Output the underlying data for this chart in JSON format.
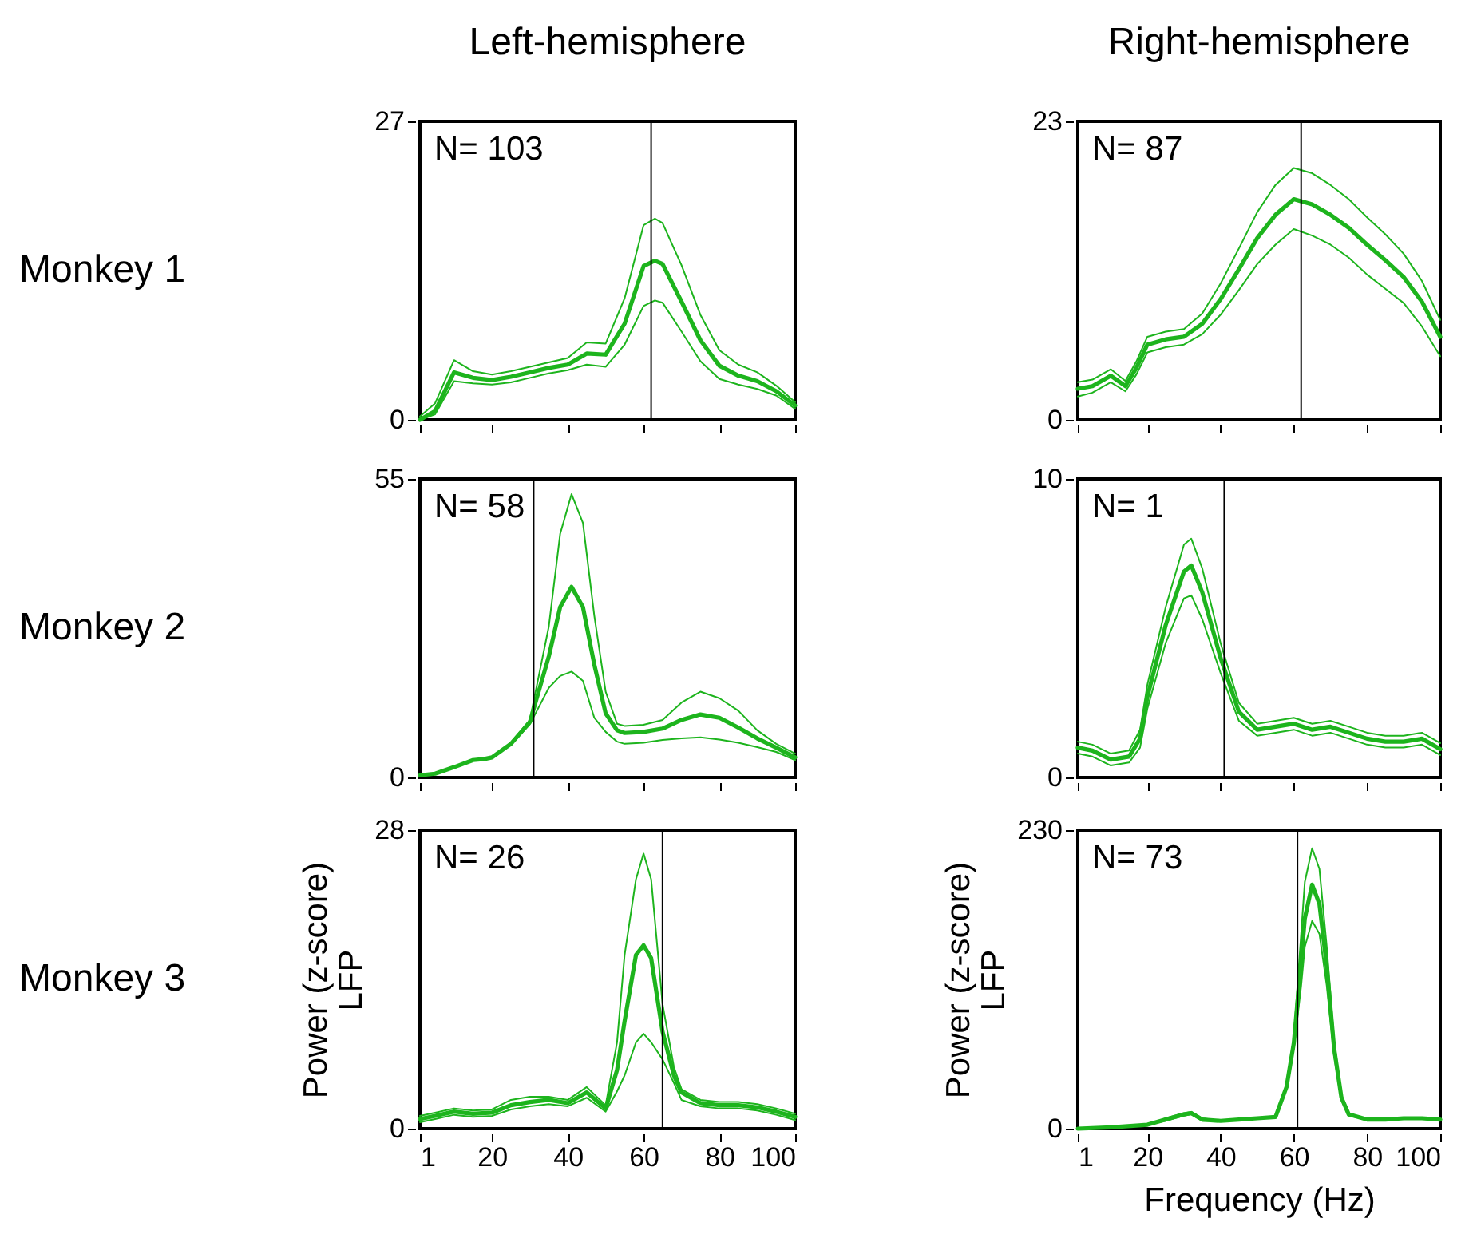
{
  "chart_data": [
    {
      "type": "line",
      "title": "Left-hemisphere",
      "annotations": [
        "Monkey 1",
        "N= 103"
      ],
      "x": [
        1,
        5,
        10,
        15,
        20,
        25,
        30,
        35,
        40,
        45,
        50,
        55,
        60,
        63,
        65,
        70,
        75,
        80,
        85,
        90,
        95,
        100
      ],
      "series": [
        {
          "color": "#1db41d",
          "values": [
            0,
            0.8,
            4.3,
            3.8,
            3.6,
            3.9,
            4.3,
            4.7,
            5.0,
            6.0,
            5.9,
            8.7,
            13.9,
            14.4,
            14.1,
            10.7,
            7.2,
            4.9,
            4.0,
            3.5,
            2.6,
            1.3
          ]
        },
        {
          "color": "#1db41d",
          "values": [
            0.3,
            1.5,
            5.4,
            4.4,
            4.1,
            4.4,
            4.8,
            5.2,
            5.6,
            7.0,
            6.9,
            11.0,
            17.6,
            18.2,
            17.8,
            14.0,
            9.5,
            6.3,
            5.0,
            4.3,
            3.1,
            1.6
          ]
        },
        {
          "color": "#1db41d",
          "values": [
            0,
            0.5,
            3.5,
            3.3,
            3.2,
            3.4,
            3.8,
            4.2,
            4.5,
            5.0,
            4.8,
            6.8,
            10.3,
            10.8,
            10.6,
            8.0,
            5.3,
            3.7,
            3.2,
            2.8,
            2.2,
            1.0
          ]
        }
      ],
      "xlim": [
        1,
        100
      ],
      "xticks": [
        1,
        20,
        40,
        60,
        80,
        100
      ],
      "ylim": [
        0,
        27
      ],
      "yticks": [
        0,
        27
      ],
      "ref_lines": [
        {
          "axis": "x",
          "value": 62,
          "color": "#000000"
        }
      ],
      "tick_labels": "y"
    },
    {
      "type": "line",
      "title": "Right-hemisphere",
      "annotations": [
        "N= 87"
      ],
      "x": [
        1,
        5,
        10,
        14,
        17,
        20,
        25,
        30,
        35,
        40,
        45,
        50,
        55,
        60,
        65,
        70,
        75,
        80,
        85,
        90,
        95,
        100
      ],
      "series": [
        {
          "color": "#1db41d",
          "values": [
            2.4,
            2.6,
            3.4,
            2.6,
            4.0,
            5.8,
            6.2,
            6.4,
            7.4,
            9.3,
            11.6,
            14.0,
            15.8,
            17.0,
            16.6,
            15.8,
            14.8,
            13.5,
            12.3,
            11.0,
            9.1,
            6.4
          ]
        },
        {
          "color": "#1db41d",
          "values": [
            2.9,
            3.1,
            3.9,
            3.0,
            4.5,
            6.4,
            6.8,
            7.0,
            8.2,
            10.5,
            13.2,
            16.0,
            18.1,
            19.4,
            19.0,
            18.1,
            17.0,
            15.6,
            14.3,
            12.8,
            10.7,
            7.7
          ]
        },
        {
          "color": "#1db41d",
          "values": [
            1.8,
            2.1,
            2.9,
            2.2,
            3.5,
            5.2,
            5.6,
            5.8,
            6.6,
            8.1,
            10.0,
            12.0,
            13.5,
            14.7,
            14.2,
            13.5,
            12.5,
            11.2,
            10.1,
            9.0,
            7.2,
            4.9
          ]
        }
      ],
      "xlim": [
        1,
        100
      ],
      "xticks": [
        1,
        20,
        40,
        60,
        80,
        100
      ],
      "ylim": [
        0,
        23
      ],
      "yticks": [
        0,
        23
      ],
      "ref_lines": [
        {
          "axis": "x",
          "value": 62,
          "color": "#000000"
        }
      ],
      "tick_labels": "y"
    },
    {
      "type": "line",
      "annotations": [
        "Monkey 2",
        "N= 58"
      ],
      "x": [
        1,
        5,
        10,
        15,
        18,
        20,
        25,
        30,
        35,
        38,
        41,
        44,
        47,
        50,
        53,
        55,
        60,
        65,
        70,
        75,
        80,
        85,
        90,
        95,
        100
      ],
      "series": [
        {
          "color": "#1db41d",
          "values": [
            0.4,
            0.7,
            1.9,
            3.2,
            3.4,
            3.7,
            6.2,
            10.2,
            22.3,
            31.4,
            35.1,
            31.4,
            20.8,
            11.8,
            8.7,
            8.2,
            8.4,
            9.0,
            10.6,
            11.6,
            11.0,
            9.2,
            7.2,
            5.5,
            3.7
          ]
        },
        {
          "color": "#1db41d",
          "values": [
            0.4,
            0.7,
            1.9,
            3.2,
            3.4,
            3.8,
            6.4,
            10.6,
            27.8,
            44.9,
            52.2,
            46.9,
            29.8,
            15.8,
            9.9,
            9.5,
            9.7,
            10.6,
            13.8,
            15.8,
            14.6,
            12.3,
            8.7,
            6.2,
            4.4
          ]
        },
        {
          "color": "#1db41d",
          "values": [
            0.4,
            0.7,
            1.9,
            3.2,
            3.4,
            3.7,
            6.0,
            9.8,
            16.5,
            18.7,
            19.5,
            17.8,
            11.0,
            8.4,
            6.6,
            6.2,
            6.4,
            6.9,
            7.2,
            7.4,
            7.0,
            6.4,
            5.6,
            4.7,
            3.2
          ]
        }
      ],
      "xlim": [
        1,
        100
      ],
      "xticks": [
        1,
        20,
        40,
        60,
        80,
        100
      ],
      "ylim": [
        0,
        55
      ],
      "yticks": [
        0,
        55
      ],
      "ref_lines": [
        {
          "axis": "x",
          "value": 31,
          "color": "#000000"
        }
      ],
      "tick_labels": "y"
    },
    {
      "type": "line",
      "annotations": [
        "N= 1"
      ],
      "x": [
        1,
        5,
        10,
        15,
        18,
        20,
        25,
        30,
        32,
        35,
        40,
        45,
        50,
        55,
        60,
        65,
        70,
        75,
        80,
        85,
        90,
        95,
        100
      ],
      "series": [
        {
          "color": "#1db41d",
          "values": [
            1.0,
            0.9,
            0.6,
            0.7,
            1.3,
            2.7,
            5.1,
            6.9,
            7.1,
            6.2,
            4.0,
            2.2,
            1.6,
            1.7,
            1.8,
            1.6,
            1.7,
            1.5,
            1.3,
            1.2,
            1.2,
            1.3,
            0.95
          ]
        },
        {
          "color": "#1db41d",
          "values": [
            1.2,
            1.1,
            0.8,
            0.9,
            1.6,
            3.1,
            5.7,
            7.8,
            8.0,
            7.0,
            4.5,
            2.5,
            1.8,
            1.9,
            2.0,
            1.8,
            1.9,
            1.7,
            1.5,
            1.4,
            1.4,
            1.5,
            1.15
          ]
        },
        {
          "color": "#1db41d",
          "values": [
            0.8,
            0.7,
            0.4,
            0.5,
            1.0,
            2.3,
            4.5,
            6.0,
            6.1,
            5.3,
            3.5,
            1.9,
            1.4,
            1.5,
            1.6,
            1.4,
            1.5,
            1.3,
            1.1,
            1.0,
            1.0,
            1.1,
            0.75
          ]
        }
      ],
      "xlim": [
        1,
        100
      ],
      "xticks": [
        1,
        20,
        40,
        60,
        80,
        100
      ],
      "ylim": [
        0,
        10
      ],
      "yticks": [
        0,
        10
      ],
      "ref_lines": [
        {
          "axis": "x",
          "value": 41,
          "color": "#000000"
        }
      ],
      "tick_labels": "y"
    },
    {
      "type": "line",
      "annotations": [
        "Monkey 3",
        "N= 26"
      ],
      "ylabel": "Power (z-score)\nLFP",
      "x": [
        1,
        5,
        10,
        15,
        20,
        25,
        30,
        35,
        40,
        45,
        50,
        53,
        55,
        58,
        60,
        62,
        65,
        68,
        70,
        75,
        80,
        85,
        90,
        95,
        100
      ],
      "series": [
        {
          "color": "#1db41d",
          "values": [
            0.9,
            1.2,
            1.6,
            1.4,
            1.5,
            2.2,
            2.5,
            2.7,
            2.4,
            3.4,
            1.9,
            5.5,
            10.1,
            16.3,
            17.2,
            16.0,
            9.1,
            5.0,
            3.4,
            2.4,
            2.2,
            2.2,
            2.0,
            1.6,
            1.1
          ]
        },
        {
          "color": "#1db41d",
          "values": [
            1.2,
            1.5,
            1.9,
            1.7,
            1.8,
            2.7,
            3.0,
            3.0,
            2.7,
            3.9,
            2.2,
            8.1,
            16.3,
            23.4,
            25.8,
            23.4,
            11.7,
            5.8,
            3.7,
            2.7,
            2.5,
            2.5,
            2.3,
            1.9,
            1.4
          ]
        },
        {
          "color": "#1db41d",
          "values": [
            0.6,
            0.9,
            1.3,
            1.1,
            1.2,
            1.8,
            2.1,
            2.3,
            2.1,
            2.9,
            1.6,
            3.5,
            5.0,
            8.1,
            8.9,
            8.1,
            6.5,
            4.3,
            2.7,
            2.1,
            1.9,
            1.9,
            1.7,
            1.3,
            0.8
          ]
        }
      ],
      "xlim": [
        1,
        100
      ],
      "xticks": [
        1,
        20,
        40,
        60,
        80,
        100
      ],
      "ylim": [
        0,
        28
      ],
      "yticks": [
        0,
        28
      ],
      "ref_lines": [
        {
          "axis": "x",
          "value": 65,
          "color": "#000000"
        }
      ]
    },
    {
      "type": "line",
      "annotations": [
        "N= 73"
      ],
      "ylabel": "Power (z-score)\nLFP",
      "xlabel": "Frequency (Hz)",
      "x": [
        1,
        10,
        20,
        25,
        30,
        32,
        35,
        40,
        45,
        50,
        55,
        58,
        60,
        62,
        63,
        65,
        67,
        69,
        71,
        73,
        75,
        80,
        85,
        90,
        95,
        100
      ],
      "series": [
        {
          "color": "#1db41d",
          "values": [
            0,
            1,
            3,
            7,
            11,
            12,
            7,
            6,
            7,
            8,
            9,
            32,
            66,
            129,
            162,
            188,
            173,
            125,
            62,
            24,
            11,
            7,
            7,
            8,
            8,
            7
          ]
        },
        {
          "color": "#1db41d",
          "values": [
            0,
            1,
            3,
            8,
            12,
            13,
            8,
            6,
            7,
            8,
            9,
            33,
            70,
            150,
            190,
            216,
            200,
            140,
            68,
            26,
            12,
            7,
            7,
            8,
            8,
            7
          ]
        },
        {
          "color": "#1db41d",
          "values": [
            0,
            1,
            3,
            6,
            10,
            11,
            6,
            6,
            7,
            8,
            9,
            31,
            62,
            110,
            140,
            160,
            150,
            110,
            56,
            22,
            10,
            7,
            7,
            8,
            8,
            7
          ]
        }
      ],
      "xlim": [
        1,
        100
      ],
      "xticks": [
        1,
        20,
        40,
        60,
        80,
        100
      ],
      "ylim": [
        0,
        230
      ],
      "yticks": [
        0,
        230
      ],
      "ref_lines": [
        {
          "axis": "x",
          "value": 61,
          "color": "#000000"
        }
      ]
    }
  ]
}
